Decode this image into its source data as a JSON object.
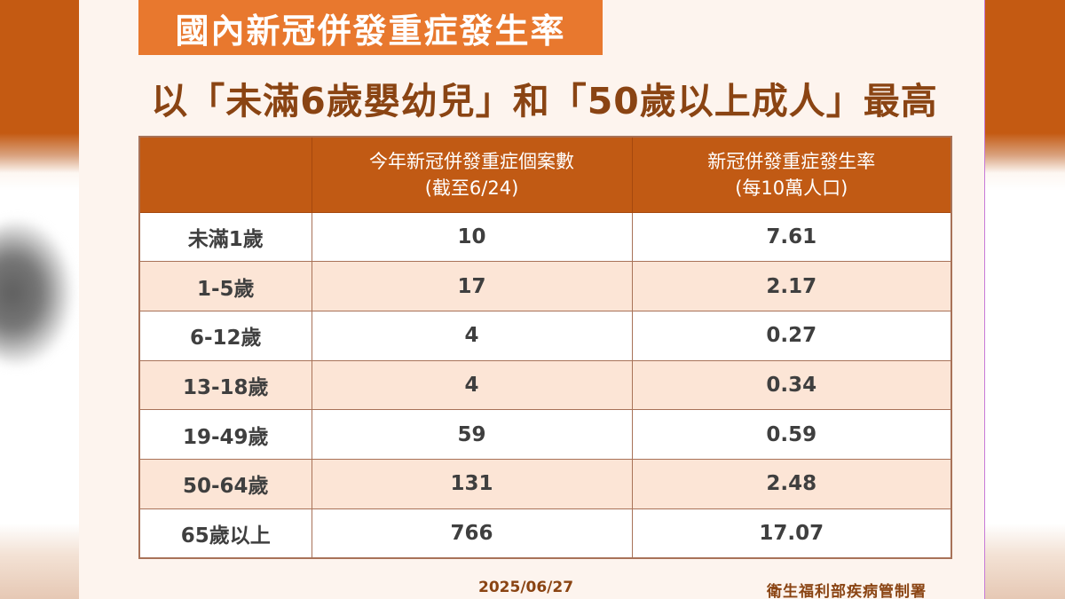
{
  "title": "國內新冠併發重症發生率",
  "subtitle": "以「未滿6歲嬰幼兒」和「50歲以上成人」最高",
  "table": {
    "headers": [
      {
        "line1": "",
        "line2": ""
      },
      {
        "line1": "今年新冠併發重症個案數",
        "line2": "(截至6/24)"
      },
      {
        "line1": "新冠併發重症發生率",
        "line2": "(每10萬人口)"
      }
    ],
    "rows": [
      {
        "age": "未滿1歲",
        "cases": "10",
        "rate": "7.61"
      },
      {
        "age": "1-5歲",
        "cases": "17",
        "rate": "2.17"
      },
      {
        "age": "6-12歲",
        "cases": "4",
        "rate": "0.27"
      },
      {
        "age": "13-18歲",
        "cases": "4",
        "rate": "0.34"
      },
      {
        "age": "19-49歲",
        "cases": "59",
        "rate": "0.59"
      },
      {
        "age": "50-64歲",
        "cases": "131",
        "rate": "2.48"
      },
      {
        "age": "65歲以上",
        "cases": "766",
        "rate": "17.07"
      }
    ]
  },
  "footer": {
    "date": "2025/06/27",
    "source": "衛生福利部疾病管制署"
  },
  "colors": {
    "title_badge": "#e8782e",
    "subtitle_text": "#8a4413",
    "header_bg": "#c15a14",
    "row_alt_bg": "#fce5d6",
    "border": "#a87258",
    "card_bg": "#fdf4ee"
  }
}
